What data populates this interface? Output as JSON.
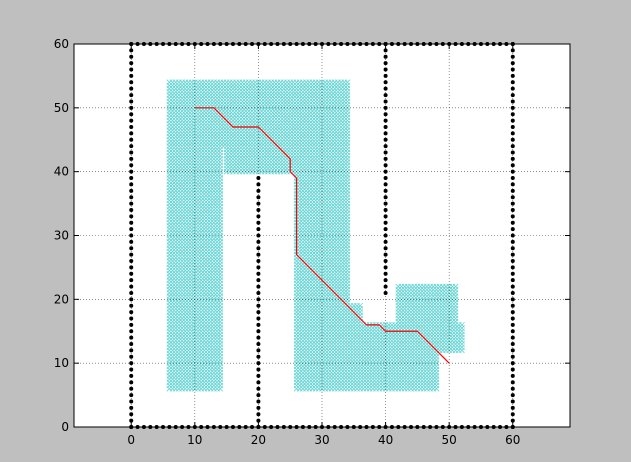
{
  "chart_data": {
    "type": "scatter",
    "title": "",
    "xlabel": "",
    "ylabel": "",
    "xlim": [
      -9,
      69
    ],
    "ylim": [
      0,
      60
    ],
    "xticks": [
      0,
      10,
      20,
      30,
      40,
      50,
      60
    ],
    "yticks": [
      0,
      10,
      20,
      30,
      40,
      50,
      60
    ],
    "grid": true,
    "colors": {
      "figure_bg": "#bfbfbf",
      "axes_bg": "#ffffff",
      "obstacles": "#000000",
      "explored": "#5fd3d3",
      "path": "#ff0000"
    },
    "obstacle_walls": [
      {
        "x": 0,
        "y_from": 0,
        "y_to": 60
      },
      {
        "x": 60,
        "y_from": 0,
        "y_to": 60
      },
      {
        "x": 20,
        "y_from": 0,
        "y_to": 39
      },
      {
        "x": 40,
        "y_from": 21,
        "y_to": 60
      },
      {
        "y": 0,
        "x_from": 0,
        "x_to": 60
      },
      {
        "y": 60,
        "x_from": 0,
        "x_to": 60
      }
    ],
    "explored_regions": [
      {
        "x_from": 6,
        "x_to": 14,
        "y_from": 6,
        "y_to": 54
      },
      {
        "x_from": 14,
        "x_to": 34,
        "y_from": 44,
        "y_to": 54
      },
      {
        "x_from": 15,
        "x_to": 26,
        "y_from": 40,
        "y_to": 44
      },
      {
        "x_from": 26,
        "x_to": 34,
        "y_from": 6,
        "y_to": 44
      },
      {
        "x_from": 34,
        "x_to": 48,
        "y_from": 6,
        "y_to": 16
      },
      {
        "x_from": 34,
        "x_to": 36,
        "y_from": 16,
        "y_to": 19
      },
      {
        "x_from": 42,
        "x_to": 51,
        "y_from": 16,
        "y_to": 22
      },
      {
        "x_from": 48,
        "x_to": 52,
        "y_from": 12,
        "y_to": 16
      }
    ],
    "path": [
      [
        10,
        50
      ],
      [
        13,
        50
      ],
      [
        16,
        47
      ],
      [
        20,
        47
      ],
      [
        25,
        42
      ],
      [
        25,
        40
      ],
      [
        26,
        39
      ],
      [
        26,
        27
      ],
      [
        37,
        16
      ],
      [
        39,
        16
      ],
      [
        40,
        15
      ],
      [
        45,
        15
      ],
      [
        50,
        10
      ]
    ]
  }
}
